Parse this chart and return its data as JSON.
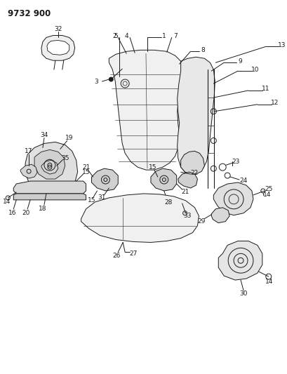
{
  "title": "9732 900",
  "bg_color": "#ffffff",
  "line_color": "#1a1a1a",
  "title_fontsize": 8.5,
  "label_fontsize": 6.5,
  "fig_width": 4.1,
  "fig_height": 5.33,
  "dpi": 100
}
